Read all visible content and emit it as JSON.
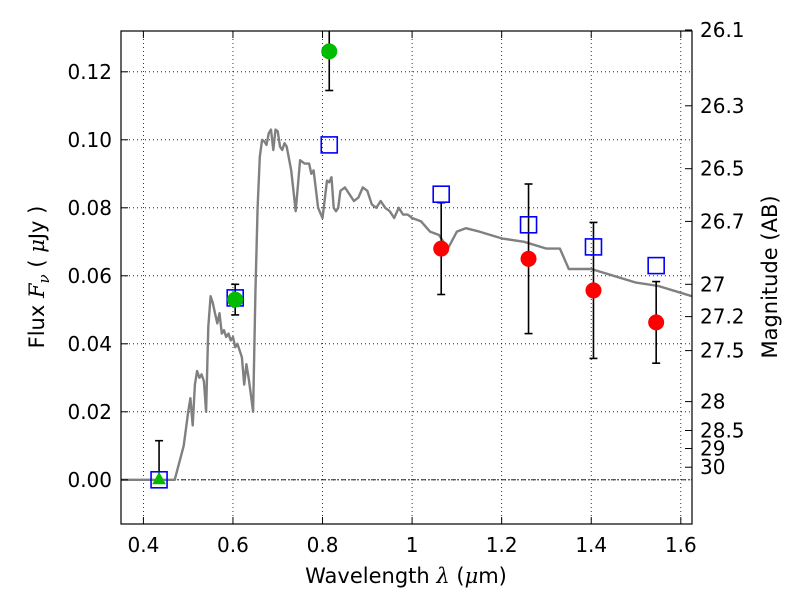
{
  "chart_data": {
    "type": "scatter",
    "title": "",
    "xlabel": "Wavelength  λ (μm)",
    "xlabel_parts": [
      "Wavelength  ",
      "λ",
      " (",
      "μ",
      "m)"
    ],
    "ylabel": "Flux  Fν  ( μJy )",
    "ylabel_parts": [
      "Flux  ",
      "F",
      "ν",
      "  ( ",
      "μ",
      "Jy )"
    ],
    "y2label": "Magnitude (AB)",
    "xlim": [
      0.35,
      1.625
    ],
    "ylim": [
      -0.013,
      0.132
    ],
    "grid": true,
    "x_ticks": [
      {
        "value": 0.4,
        "label": "0.4"
      },
      {
        "value": 0.6,
        "label": "0.6"
      },
      {
        "value": 0.8,
        "label": "0.8"
      },
      {
        "value": 1.0,
        "label": "1"
      },
      {
        "value": 1.2,
        "label": "1.2"
      },
      {
        "value": 1.4,
        "label": "1.4"
      },
      {
        "value": 1.6,
        "label": "1.6"
      }
    ],
    "y_ticks": [
      {
        "value": 0.0,
        "label": "0.00"
      },
      {
        "value": 0.02,
        "label": "0.02"
      },
      {
        "value": 0.04,
        "label": "0.04"
      },
      {
        "value": 0.06,
        "label": "0.06"
      },
      {
        "value": 0.08,
        "label": "0.08"
      },
      {
        "value": 0.1,
        "label": "0.10"
      },
      {
        "value": 0.12,
        "label": "0.12"
      }
    ],
    "y2_ticks": [
      {
        "flux": 0.1323,
        "label": "26.1"
      },
      {
        "flux": 0.11,
        "label": "26.3"
      },
      {
        "flux": 0.0915,
        "label": "26.5"
      },
      {
        "flux": 0.076,
        "label": "26.7"
      },
      {
        "flux": 0.0575,
        "label": "27"
      },
      {
        "flux": 0.048,
        "label": "27.2"
      },
      {
        "flux": 0.038,
        "label": "27.5"
      },
      {
        "flux": 0.023,
        "label": "28"
      },
      {
        "flux": 0.0145,
        "label": "28.5"
      },
      {
        "flux": 0.0092,
        "label": "29"
      },
      {
        "flux": 0.0037,
        "label": "30"
      }
    ],
    "colors": {
      "model": "#808080",
      "detection": "#ff0000",
      "green": "#00bb00",
      "model_flux": "#0000ff",
      "errorbar": "#000000",
      "zero_line": "#000000"
    },
    "series": [
      {
        "kind": "model-spectrum",
        "x": [
          0.35,
          0.47,
          0.48,
          0.49,
          0.5,
          0.505,
          0.51,
          0.515,
          0.52,
          0.525,
          0.53,
          0.535,
          0.54,
          0.545,
          0.55,
          0.555,
          0.56,
          0.565,
          0.57,
          0.575,
          0.58,
          0.585,
          0.59,
          0.595,
          0.6,
          0.605,
          0.61,
          0.615,
          0.62,
          0.625,
          0.63,
          0.635,
          0.64,
          0.645,
          0.65,
          0.655,
          0.66,
          0.665,
          0.67,
          0.675,
          0.68,
          0.685,
          0.69,
          0.695,
          0.7,
          0.705,
          0.71,
          0.715,
          0.72,
          0.73,
          0.74,
          0.75,
          0.76,
          0.77,
          0.775,
          0.78,
          0.79,
          0.8,
          0.81,
          0.815,
          0.82,
          0.825,
          0.83,
          0.835,
          0.84,
          0.85,
          0.86,
          0.87,
          0.88,
          0.89,
          0.9,
          0.91,
          0.92,
          0.93,
          0.94,
          0.95,
          0.96,
          0.97,
          0.98,
          0.99,
          1.0,
          1.02,
          1.04,
          1.06,
          1.08,
          1.1,
          1.12,
          1.15,
          1.2,
          1.25,
          1.3,
          1.33,
          1.35,
          1.4,
          1.45,
          1.5,
          1.55,
          1.6,
          1.625
        ],
        "y": [
          0.0,
          0.0,
          0.005,
          0.01,
          0.02,
          0.024,
          0.016,
          0.028,
          0.032,
          0.03,
          0.031,
          0.029,
          0.02,
          0.045,
          0.054,
          0.052,
          0.049,
          0.046,
          0.049,
          0.043,
          0.044,
          0.042,
          0.043,
          0.041,
          0.042,
          0.039,
          0.04,
          0.038,
          0.036,
          0.028,
          0.034,
          0.03,
          0.025,
          0.02,
          0.055,
          0.08,
          0.095,
          0.1,
          0.0995,
          0.0985,
          0.102,
          0.103,
          0.097,
          0.103,
          0.1025,
          0.098,
          0.097,
          0.099,
          0.098,
          0.091,
          0.079,
          0.094,
          0.093,
          0.093,
          0.09,
          0.091,
          0.08,
          0.077,
          0.088,
          0.0875,
          0.089,
          0.08,
          0.079,
          0.08,
          0.085,
          0.086,
          0.084,
          0.082,
          0.083,
          0.086,
          0.085,
          0.081,
          0.08,
          0.082,
          0.08,
          0.079,
          0.077,
          0.08,
          0.078,
          0.078,
          0.077,
          0.076,
          0.073,
          0.072,
          0.068,
          0.073,
          0.074,
          0.073,
          0.071,
          0.07,
          0.068,
          0.068,
          0.062,
          0.062,
          0.06,
          0.058,
          0.057,
          0.055,
          0.054
        ]
      },
      {
        "kind": "model-flux",
        "marker": "open-square",
        "x": [
          0.435,
          0.605,
          0.815,
          1.065,
          1.26,
          1.405,
          1.545
        ],
        "y": [
          0.0,
          0.0535,
          0.0985,
          0.084,
          0.075,
          0.0685,
          0.063
        ]
      },
      {
        "kind": "green-points",
        "marker": "filled-circle",
        "x": [
          0.605,
          0.815
        ],
        "y": [
          0.053,
          0.126
        ],
        "err": [
          0.0045,
          0.0115
        ]
      },
      {
        "kind": "green-upper",
        "marker": "filled-triangle-up",
        "x": [
          0.435
        ],
        "y": [
          0.0
        ],
        "err_lo": 0.0,
        "err_hi": 0.0115
      },
      {
        "kind": "red-points",
        "marker": "filled-circle",
        "x": [
          1.065,
          1.26,
          1.405,
          1.545
        ],
        "y": [
          0.068,
          0.065,
          0.0557,
          0.0463
        ],
        "err": [
          0.0135,
          0.022,
          0.02,
          0.012
        ]
      }
    ]
  }
}
